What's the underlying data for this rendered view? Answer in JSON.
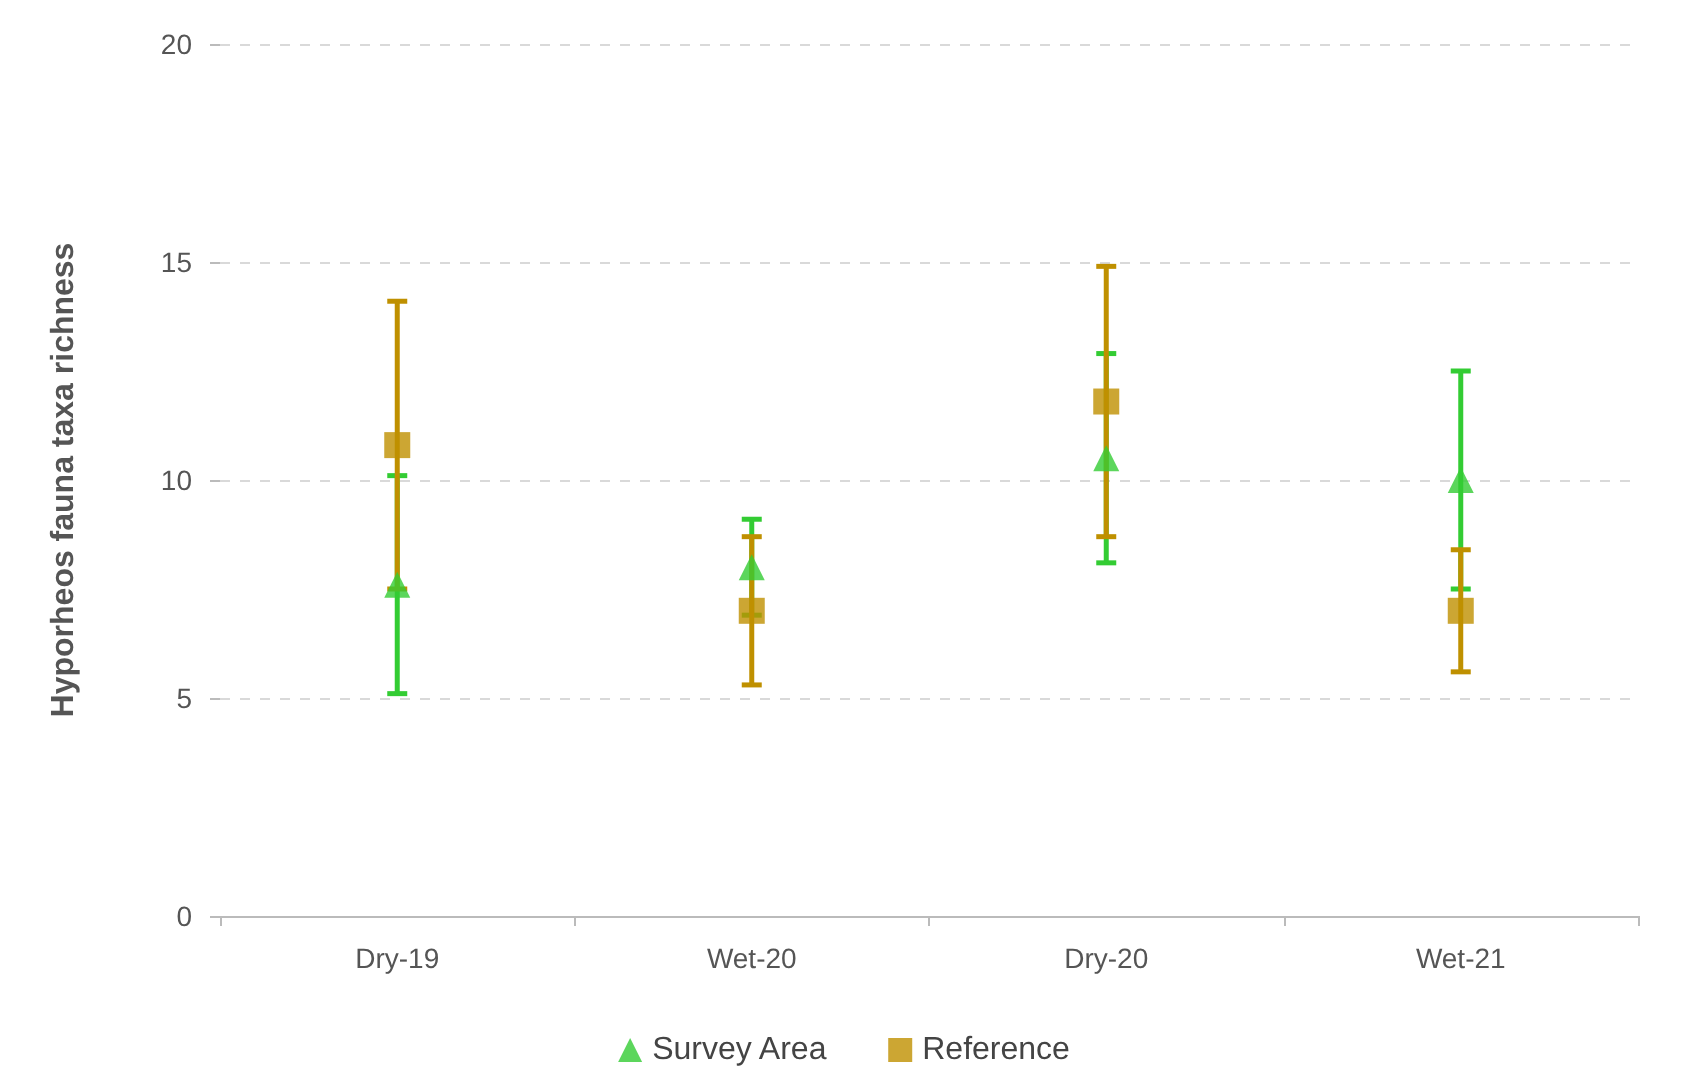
{
  "chart_data": {
    "type": "scatter",
    "ylabel": "Hyporheos fauna taxa richness",
    "categories": [
      "Dry-19",
      "Wet-20",
      "Dry-20",
      "Wet-21"
    ],
    "series": [
      {
        "name": "Survey Area",
        "color": "#33cc33",
        "marker": "triangle",
        "values": [
          7.6,
          8.0,
          10.5,
          10.0
        ],
        "errors": [
          2.5,
          1.1,
          2.4,
          2.5
        ]
      },
      {
        "name": "Reference",
        "color": "#bf9000",
        "marker": "square",
        "values": [
          10.8,
          7.0,
          11.8,
          7.0
        ],
        "errors": [
          3.3,
          1.7,
          3.1,
          1.4
        ]
      }
    ],
    "ylim": [
      0,
      20
    ],
    "yticks": [
      0,
      5,
      10,
      15,
      20
    ],
    "grid": "y",
    "legend": "bottom"
  }
}
